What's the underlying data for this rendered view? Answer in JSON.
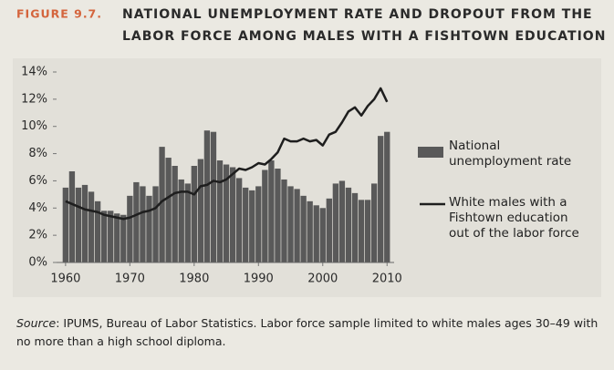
{
  "chart_data": {
    "type": "combo",
    "figure_label": "FIGURE 9.7.",
    "title": [
      "NATIONAL UNEMPLOYMENT RATE AND DROPOUT FROM THE",
      "LABOR FORCE AMONG MALES WITH A FISHTOWN EDUCATION"
    ],
    "x": [
      1960,
      1961,
      1962,
      1963,
      1964,
      1965,
      1966,
      1967,
      1968,
      1969,
      1970,
      1971,
      1972,
      1973,
      1974,
      1975,
      1976,
      1977,
      1978,
      1979,
      1980,
      1981,
      1982,
      1983,
      1984,
      1985,
      1986,
      1987,
      1988,
      1989,
      1990,
      1991,
      1992,
      1993,
      1994,
      1995,
      1996,
      1997,
      1998,
      1999,
      2000,
      2001,
      2002,
      2003,
      2004,
      2005,
      2006,
      2007,
      2008,
      2009,
      2010
    ],
    "series": [
      {
        "name": "National unemployment rate",
        "type": "bar",
        "color": "#595959",
        "values": [
          5.5,
          6.7,
          5.5,
          5.7,
          5.2,
          4.5,
          3.8,
          3.8,
          3.6,
          3.5,
          4.9,
          5.9,
          5.6,
          4.9,
          5.6,
          8.5,
          7.7,
          7.1,
          6.1,
          5.8,
          7.1,
          7.6,
          9.7,
          9.6,
          7.5,
          7.2,
          7.0,
          6.2,
          5.5,
          5.3,
          5.6,
          6.8,
          7.5,
          6.9,
          6.1,
          5.6,
          5.4,
          4.9,
          4.5,
          4.2,
          4.0,
          4.7,
          5.8,
          6.0,
          5.5,
          5.1,
          4.6,
          4.6,
          5.8,
          9.3,
          9.6
        ]
      },
      {
        "name": "White males with a Fishtown education out of the labor force",
        "type": "line",
        "color": "#1e1e1e",
        "values": [
          4.5,
          4.3,
          4.1,
          3.9,
          3.8,
          3.7,
          3.5,
          3.4,
          3.3,
          3.2,
          3.3,
          3.5,
          3.7,
          3.8,
          4.0,
          4.5,
          4.8,
          5.1,
          5.2,
          5.2,
          5.0,
          5.6,
          5.7,
          6.0,
          5.9,
          6.1,
          6.5,
          6.9,
          6.8,
          7.0,
          7.3,
          7.2,
          7.6,
          8.1,
          9.1,
          8.9,
          8.9,
          9.1,
          8.9,
          9.0,
          8.6,
          9.4,
          9.6,
          10.3,
          11.1,
          11.4,
          10.8,
          11.5,
          12.0,
          12.8,
          11.8
        ]
      }
    ],
    "xlim": [
      1958.6,
      2011.1
    ],
    "xticks": [
      1960,
      1970,
      1980,
      1990,
      2000,
      2010
    ],
    "ylim": [
      0,
      14
    ],
    "yticks": [
      {
        "value": 0,
        "label": "0%"
      },
      {
        "value": 2,
        "label": "2%"
      },
      {
        "value": 4,
        "label": "4%"
      },
      {
        "value": 6,
        "label": "6%"
      },
      {
        "value": 8,
        "label": "8%"
      },
      {
        "value": 10,
        "label": "10%"
      },
      {
        "value": 12,
        "label": "12%"
      },
      {
        "value": 14,
        "label": "14%"
      }
    ],
    "source_label": "Source",
    "source": ": IPUMS, Bureau of Labor Statistics. Labor force sample limited to white males ages 30–49 with no more than a high school diploma."
  }
}
